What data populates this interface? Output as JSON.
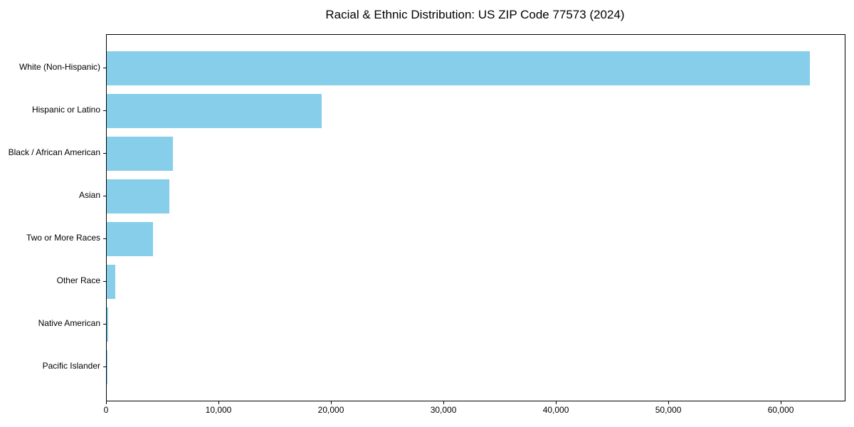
{
  "chart_data": {
    "type": "bar",
    "orientation": "horizontal",
    "title": "Racial & Ethnic Distribution: US ZIP Code 77573 (2024)",
    "categories": [
      "White (Non-Hispanic)",
      "Hispanic or Latino",
      "Black / African American",
      "Asian",
      "Two or More Races",
      "Other Race",
      "Native American",
      "Pacific Islander"
    ],
    "values": [
      62500,
      19100,
      5900,
      5600,
      4100,
      750,
      150,
      40
    ],
    "xlabel": "",
    "ylabel": "",
    "xlim": [
      0,
      65625
    ],
    "xticks": [
      0,
      10000,
      20000,
      30000,
      40000,
      50000,
      60000
    ],
    "xtick_labels": [
      "0",
      "10,000",
      "20,000",
      "30,000",
      "40,000",
      "50,000",
      "60,000"
    ],
    "bar_color": "#87CEEB",
    "grid": false,
    "legend_position": "none",
    "frame": "full-box"
  }
}
